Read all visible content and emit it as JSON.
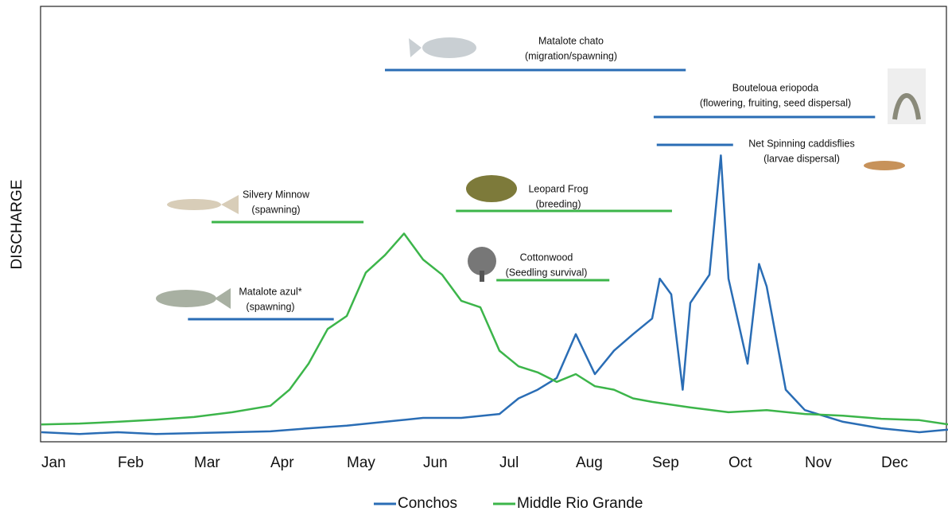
{
  "chart_data": {
    "type": "line",
    "ylabel": "DISCHARGE",
    "xlim": [
      0,
      11.875
    ],
    "ylim": [
      0,
      100
    ],
    "xticks": [
      {
        "value": 0,
        "label": "Jan"
      },
      {
        "value": 1,
        "label": "Feb"
      },
      {
        "value": 2,
        "label": "Mar"
      },
      {
        "value": 3,
        "label": "Apr"
      },
      {
        "value": 4,
        "label": "May"
      },
      {
        "value": 5,
        "label": "Jun"
      },
      {
        "value": 6,
        "label": "Jul"
      },
      {
        "value": 7,
        "label": "Aug"
      },
      {
        "value": 8,
        "label": "Sep"
      },
      {
        "value": 9,
        "label": "Oct"
      },
      {
        "value": 10,
        "label": "Nov"
      },
      {
        "value": 11,
        "label": "Dec"
      }
    ],
    "series": [
      {
        "name": "Conchos",
        "color": "#2a6db5",
        "x": [
          0,
          0.5,
          1,
          1.5,
          2,
          2.5,
          3,
          3.5,
          4,
          4.5,
          5,
          5.5,
          6,
          6.25,
          6.5,
          6.75,
          7,
          7.25,
          7.5,
          7.75,
          8,
          8.1,
          8.25,
          8.4,
          8.5,
          8.75,
          8.9,
          9,
          9.25,
          9.4,
          9.5,
          9.75,
          10,
          10.5,
          11,
          11.5,
          11.875
        ],
        "values": [
          2.2,
          1.8,
          2.2,
          1.8,
          2,
          2.2,
          2.4,
          3.1,
          3.7,
          4.6,
          5.5,
          5.5,
          6.4,
          10,
          12,
          14.7,
          24.8,
          15.6,
          21,
          24.8,
          28.4,
          37.6,
          34,
          12,
          32,
          38.5,
          66,
          37.6,
          18,
          41,
          35.8,
          12,
          7.3,
          4.6,
          3.1,
          2.2,
          2.8
        ]
      },
      {
        "name": "Middle Rio Grande",
        "color": "#3cb54a",
        "x": [
          0,
          0.5,
          1,
          1.5,
          2,
          2.5,
          3,
          3.25,
          3.5,
          3.75,
          4,
          4.25,
          4.5,
          4.75,
          5,
          5.25,
          5.5,
          5.75,
          6,
          6.25,
          6.5,
          6.75,
          7,
          7.25,
          7.5,
          7.75,
          8,
          8.5,
          9,
          9.5,
          10,
          10.5,
          11,
          11.5,
          11.875
        ],
        "values": [
          4,
          4.2,
          4.6,
          5.1,
          5.7,
          6.8,
          8.3,
          12,
          18,
          26,
          29,
          39,
          43,
          48,
          42,
          38.5,
          32.5,
          31,
          21,
          17.4,
          16,
          13.8,
          15.6,
          12.8,
          12,
          10,
          9.2,
          7.9,
          6.8,
          7.3,
          6.4,
          6,
          5.3,
          5,
          4
        ]
      }
    ],
    "periods": [
      {
        "name": "Matalote chato",
        "detail": "(migration/spawning)",
        "color": "#2a6db5",
        "start": 4.5,
        "end": 8.44
      },
      {
        "name": "Bouteloua eriopoda",
        "detail": "(flowering, fruiting, seed dispersal)",
        "color": "#2a6db5",
        "start": 8.02,
        "end": 10.92
      },
      {
        "name": "Net Spinning caddisflies",
        "detail": "(larvae dispersal)",
        "color": "#2a6db5",
        "start": 8.06,
        "end": 9.06
      },
      {
        "name": "Leopard Frog",
        "detail": "(breeding)",
        "color": "#3cb54a",
        "start": 5.43,
        "end": 8.26
      },
      {
        "name": "Silvery Minnow",
        "detail": "(spawning)",
        "color": "#3cb54a",
        "start": 2.23,
        "end": 4.22
      },
      {
        "name": "Cottonwood",
        "detail": "(Seedling survival)",
        "color": "#3cb54a",
        "start": 5.96,
        "end": 7.44
      },
      {
        "name": "Matalote azul*",
        "detail": "(spawning)",
        "color": "#2a6db5",
        "start": 1.92,
        "end": 3.83
      }
    ]
  }
}
